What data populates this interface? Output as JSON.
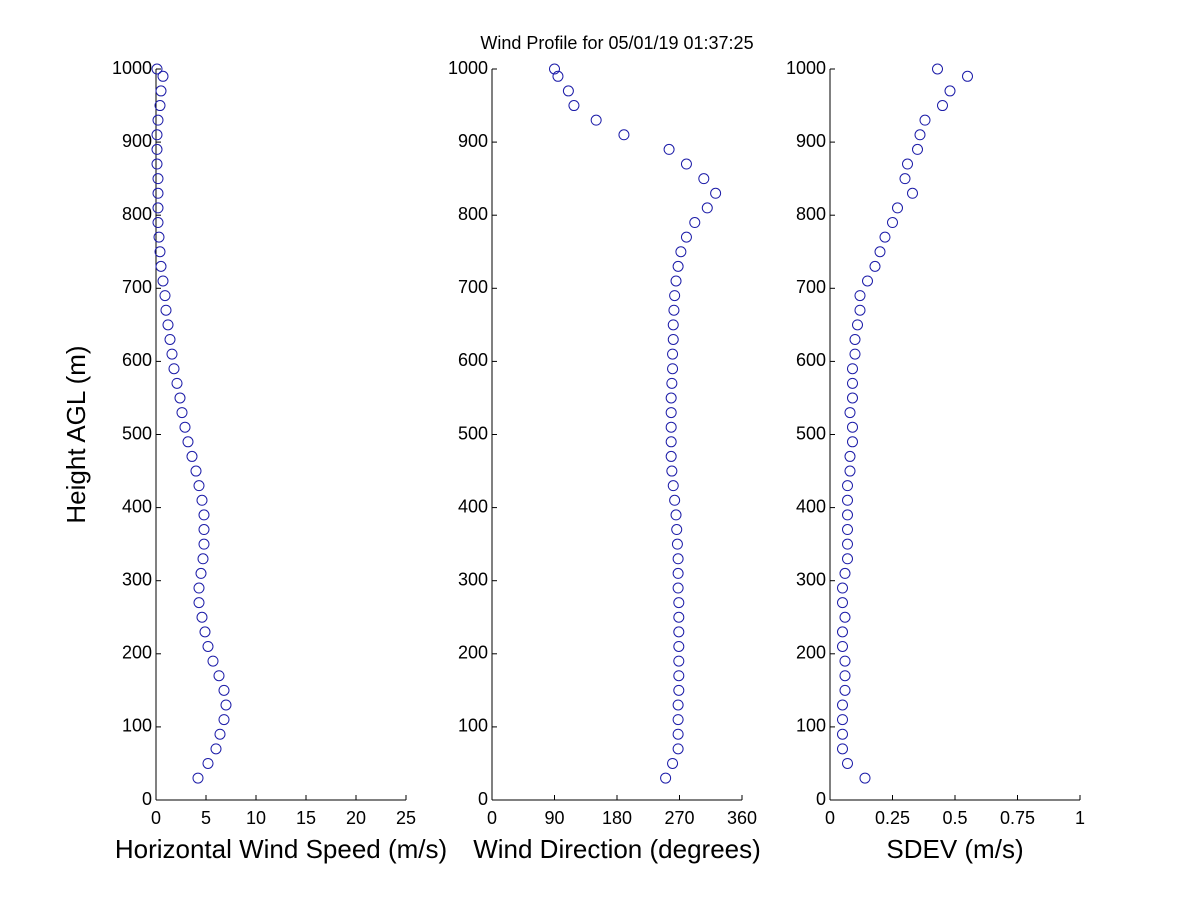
{
  "chart_data": [
    {
      "type": "scatter",
      "xlabel": "Horizontal Wind Speed (m/s)",
      "ylabel": "Height AGL (m)",
      "color": "#1c1ca8",
      "x": [
        4.2,
        5.2,
        6.0,
        6.4,
        6.8,
        7.0,
        6.8,
        6.3,
        5.7,
        5.2,
        4.9,
        4.6,
        4.3,
        4.3,
        4.5,
        4.7,
        4.8,
        4.8,
        4.8,
        4.6,
        4.3,
        4.0,
        3.6,
        3.2,
        2.9,
        2.6,
        2.4,
        2.1,
        1.8,
        1.6,
        1.4,
        1.2,
        1.0,
        0.9,
        0.7,
        0.5,
        0.4,
        0.3,
        0.2,
        0.2,
        0.2,
        0.2,
        0.1,
        0.1,
        0.1,
        0.2,
        0.4,
        0.5,
        0.7,
        0.1
      ],
      "y": [
        30,
        50,
        70,
        90,
        110,
        130,
        150,
        170,
        190,
        210,
        230,
        250,
        270,
        290,
        310,
        330,
        350,
        370,
        390,
        410,
        430,
        450,
        470,
        490,
        510,
        530,
        550,
        570,
        590,
        610,
        630,
        650,
        670,
        690,
        710,
        730,
        750,
        770,
        790,
        810,
        830,
        850,
        870,
        890,
        910,
        930,
        950,
        970,
        990,
        1000
      ],
      "xlim": [
        0,
        25
      ],
      "ylim": [
        0,
        1000
      ],
      "xticks": [
        0,
        5,
        10,
        15,
        20,
        25
      ],
      "yticks": [
        0,
        100,
        200,
        300,
        400,
        500,
        600,
        700,
        800,
        900,
        1000
      ]
    },
    {
      "type": "scatter",
      "title": "Wind Profile for  05/01/19 01:37:25",
      "xlabel": "Wind Direction (degrees)",
      "color": "#1c1ca8",
      "x": [
        250,
        260,
        268,
        268,
        268,
        268,
        269,
        269,
        269,
        269,
        269,
        269,
        269,
        268,
        268,
        268,
        267,
        266,
        265,
        263,
        261,
        259,
        258,
        258,
        258,
        258,
        258,
        259,
        260,
        260,
        261,
        261,
        262,
        263,
        265,
        268,
        272,
        280,
        292,
        310,
        322,
        305,
        280,
        255,
        190,
        150,
        118,
        110,
        95,
        90
      ],
      "y": [
        30,
        50,
        70,
        90,
        110,
        130,
        150,
        170,
        190,
        210,
        230,
        250,
        270,
        290,
        310,
        330,
        350,
        370,
        390,
        410,
        430,
        450,
        470,
        490,
        510,
        530,
        550,
        570,
        590,
        610,
        630,
        650,
        670,
        690,
        710,
        730,
        750,
        770,
        790,
        810,
        830,
        850,
        870,
        890,
        910,
        930,
        950,
        970,
        990,
        1000
      ],
      "xlim": [
        0,
        360
      ],
      "ylim": [
        0,
        1000
      ],
      "xticks": [
        0,
        90,
        180,
        270,
        360
      ],
      "yticks": [
        0,
        100,
        200,
        300,
        400,
        500,
        600,
        700,
        800,
        900,
        1000
      ]
    },
    {
      "type": "scatter",
      "xlabel": "SDEV  (m/s)",
      "color": "#1c1ca8",
      "x": [
        0.14,
        0.07,
        0.05,
        0.05,
        0.05,
        0.05,
        0.06,
        0.06,
        0.06,
        0.05,
        0.05,
        0.06,
        0.05,
        0.05,
        0.06,
        0.07,
        0.07,
        0.07,
        0.07,
        0.07,
        0.07,
        0.08,
        0.08,
        0.09,
        0.09,
        0.08,
        0.09,
        0.09,
        0.09,
        0.1,
        0.1,
        0.11,
        0.12,
        0.12,
        0.15,
        0.18,
        0.2,
        0.22,
        0.25,
        0.27,
        0.33,
        0.3,
        0.31,
        0.35,
        0.36,
        0.38,
        0.45,
        0.48,
        0.55,
        0.43
      ],
      "y": [
        30,
        50,
        70,
        90,
        110,
        130,
        150,
        170,
        190,
        210,
        230,
        250,
        270,
        290,
        310,
        330,
        350,
        370,
        390,
        410,
        430,
        450,
        470,
        490,
        510,
        530,
        550,
        570,
        590,
        610,
        630,
        650,
        670,
        690,
        710,
        730,
        750,
        770,
        790,
        810,
        830,
        850,
        870,
        890,
        910,
        930,
        950,
        970,
        990,
        1000
      ],
      "xlim": [
        0,
        1
      ],
      "ylim": [
        0,
        1000
      ],
      "xticks": [
        0,
        0.25,
        0.5,
        0.75,
        1
      ],
      "yticks": [
        0,
        100,
        200,
        300,
        400,
        500,
        600,
        700,
        800,
        900,
        1000
      ]
    }
  ]
}
